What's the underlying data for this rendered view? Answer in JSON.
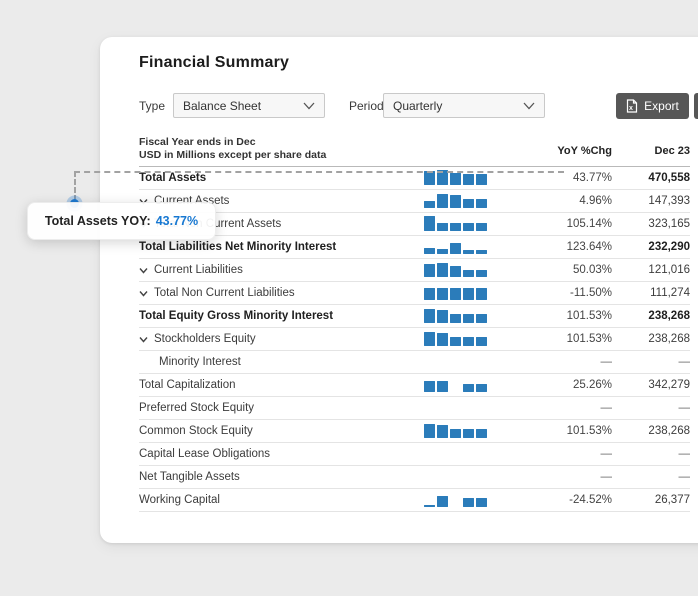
{
  "card": {
    "title": "Financial Summary",
    "controls": {
      "type_label": "Type",
      "type_value": "Balance Sheet",
      "period_label": "Period",
      "period_value": "Quarterly",
      "export_label": "Export"
    },
    "table": {
      "meta_line1": "Fiscal Year ends in Dec",
      "meta_line2": "USD in Millions except per share data",
      "col_yoy": "YoY %Chg",
      "col_period": "Dec 23",
      "empty_value": "—",
      "rows": [
        {
          "label": "Total Assets",
          "bold": true,
          "chevron": false,
          "indent": 0,
          "bars": [
            0.9,
            1.0,
            0.78,
            0.72,
            0.72
          ],
          "yoy": "43.77%",
          "value": "470,558",
          "value_bold": true
        },
        {
          "label": "Current Assets",
          "bold": false,
          "chevron": true,
          "indent": 1,
          "bars": [
            0.48,
            0.95,
            0.88,
            0.62,
            0.62
          ],
          "yoy": "4.96%",
          "value": "147,393",
          "value_bold": false
        },
        {
          "label": "Total Non Current Assets",
          "bold": false,
          "chevron": true,
          "indent": 1,
          "bars": [
            1.0,
            0.55,
            0.52,
            0.5,
            0.5
          ],
          "yoy": "105.14%",
          "value": "323,165",
          "value_bold": false
        },
        {
          "label": "Total Liabilities Net Minority Interest",
          "bold": true,
          "chevron": false,
          "indent": 0,
          "bars": [
            0.38,
            0.32,
            0.75,
            0.28,
            0.28
          ],
          "yoy": "123.64%",
          "value": "232,290",
          "value_bold": true
        },
        {
          "label": "Current Liabilities",
          "bold": false,
          "chevron": true,
          "indent": 1,
          "bars": [
            0.85,
            0.9,
            0.7,
            0.45,
            0.45
          ],
          "yoy": "50.03%",
          "value": "121,016",
          "value_bold": false
        },
        {
          "label": "Total Non Current Liabilities",
          "bold": false,
          "chevron": true,
          "indent": 1,
          "bars": [
            0.8,
            0.8,
            0.8,
            0.8,
            0.8
          ],
          "yoy": "-11.50%",
          "value": "111,274",
          "value_bold": false
        },
        {
          "label": "Total Equity Gross Minority Interest",
          "bold": true,
          "chevron": false,
          "indent": 0,
          "bars": [
            0.95,
            0.88,
            0.62,
            0.58,
            0.58
          ],
          "yoy": "101.53%",
          "value": "238,268",
          "value_bold": true
        },
        {
          "label": "Stockholders Equity",
          "bold": false,
          "chevron": true,
          "indent": 1,
          "bars": [
            0.95,
            0.88,
            0.62,
            0.58,
            0.58
          ],
          "yoy": "101.53%",
          "value": "238,268",
          "value_bold": false
        },
        {
          "label": "Minority Interest",
          "bold": false,
          "chevron": false,
          "indent": 2,
          "bars": [],
          "yoy": "—",
          "value": "—",
          "value_bold": false
        },
        {
          "label": "Total Capitalization",
          "bold": false,
          "chevron": false,
          "indent": 0,
          "bars": [
            0.7,
            0.7,
            0,
            0.55,
            0.55
          ],
          "yoy": "25.26%",
          "value": "342,279",
          "value_bold": false
        },
        {
          "label": "Preferred Stock Equity",
          "bold": false,
          "chevron": false,
          "indent": 0,
          "bars": [],
          "yoy": "—",
          "value": "—",
          "value_bold": false
        },
        {
          "label": "Common Stock Equity",
          "bold": false,
          "chevron": false,
          "indent": 0,
          "bars": [
            0.95,
            0.88,
            0.62,
            0.58,
            0.58
          ],
          "yoy": "101.53%",
          "value": "238,268",
          "value_bold": false
        },
        {
          "label": "Capital Lease Obligations",
          "bold": false,
          "chevron": false,
          "indent": 0,
          "bars": [],
          "yoy": "—",
          "value": "—",
          "value_bold": false
        },
        {
          "label": "Net Tangible Assets",
          "bold": false,
          "chevron": false,
          "indent": 0,
          "bars": [],
          "yoy": "—",
          "value": "—",
          "value_bold": false
        },
        {
          "label": "Working Capital",
          "bold": false,
          "chevron": false,
          "indent": 0,
          "bars": [
            0.15,
            0.7,
            0,
            0.6,
            0.6
          ],
          "yoy": "-24.52%",
          "value": "26,377",
          "value_bold": false
        }
      ]
    }
  },
  "tooltip": {
    "label": "Total Assets YOY:",
    "value": "43.77%"
  },
  "colors": {
    "bar_blue": "#2b7cba",
    "tooltip_accent": "#1778d2",
    "export_button_bg": "#575757",
    "page_background": "#ebebeb"
  }
}
